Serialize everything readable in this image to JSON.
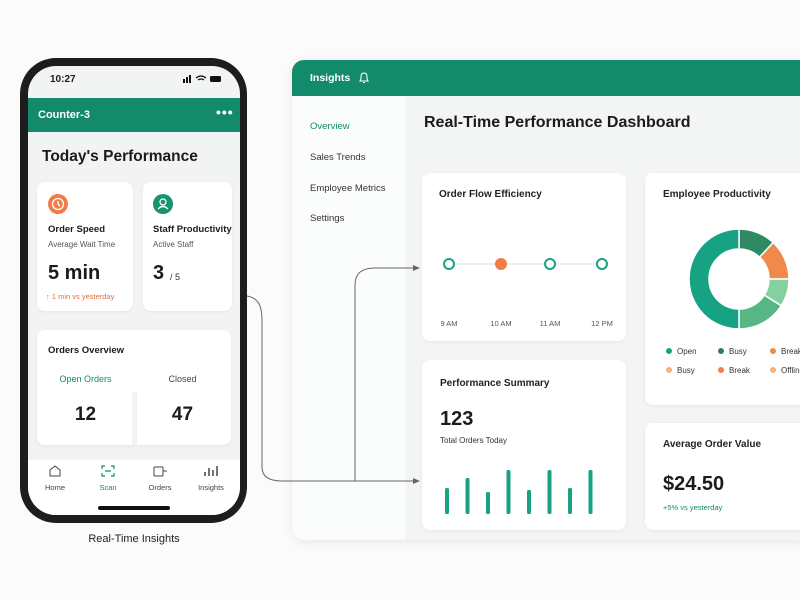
{
  "phone": {
    "time": "10:27",
    "header": "Counter-3",
    "title": "Today's Performance",
    "cards": [
      {
        "title": "Order Speed",
        "subtitle": "Average Wait Time",
        "value": "5 min",
        "note": "↑ 1 min vs yesterday"
      },
      {
        "title": "Staff Productivity",
        "subtitle": "Active Staff",
        "value": "3",
        "total": "/ 5"
      }
    ],
    "orders": {
      "title": "Orders Overview",
      "columns": [
        {
          "label": "Open Orders",
          "value": "12"
        },
        {
          "label": "Closed",
          "value": "47"
        }
      ]
    },
    "nav": [
      "Home",
      "Scan",
      "Orders",
      "Insights"
    ],
    "caption": "Real-Time Insights"
  },
  "dashboard": {
    "header": "Insights",
    "menu": [
      "Overview",
      "Sales Trends",
      "Employee Metrics",
      "Settings"
    ],
    "title": "Real-Time Performance Dashboard",
    "order_flow": {
      "title": "Order Flow Efficiency",
      "times": [
        "9 AM",
        "10 AM",
        "11 AM",
        "12 PM"
      ]
    },
    "productivity": {
      "title": "Employee Productivity",
      "segments": [
        {
          "value": 12,
          "color": "#2f8a63"
        },
        {
          "value": 13,
          "color": "#f08a4b"
        },
        {
          "value": 9,
          "color": "#86cf9f"
        },
        {
          "value": 16,
          "color": "#56b784"
        },
        {
          "value": 50,
          "color": "#17a283"
        }
      ],
      "legend": [
        {
          "label": "Open",
          "color": "#17a283"
        },
        {
          "label": "Busy",
          "color": "#2f7d5a"
        },
        {
          "label": "Break",
          "color": "#f08a4b"
        },
        {
          "label": "Busy",
          "color": "#f5b07d"
        },
        {
          "label": "Break",
          "color": "#ef8049"
        },
        {
          "label": "Offline",
          "color": "#f5b07d"
        }
      ]
    },
    "summary": {
      "title": "Performance Summary",
      "value": "123",
      "label": "Total Orders Today",
      "bars": [
        26,
        36,
        22,
        44,
        24,
        44,
        26,
        44
      ],
      "color": "#17a283"
    },
    "aov": {
      "title": "Average Order Value",
      "value": "$24.50",
      "note": "+5% vs yesterday"
    }
  }
}
